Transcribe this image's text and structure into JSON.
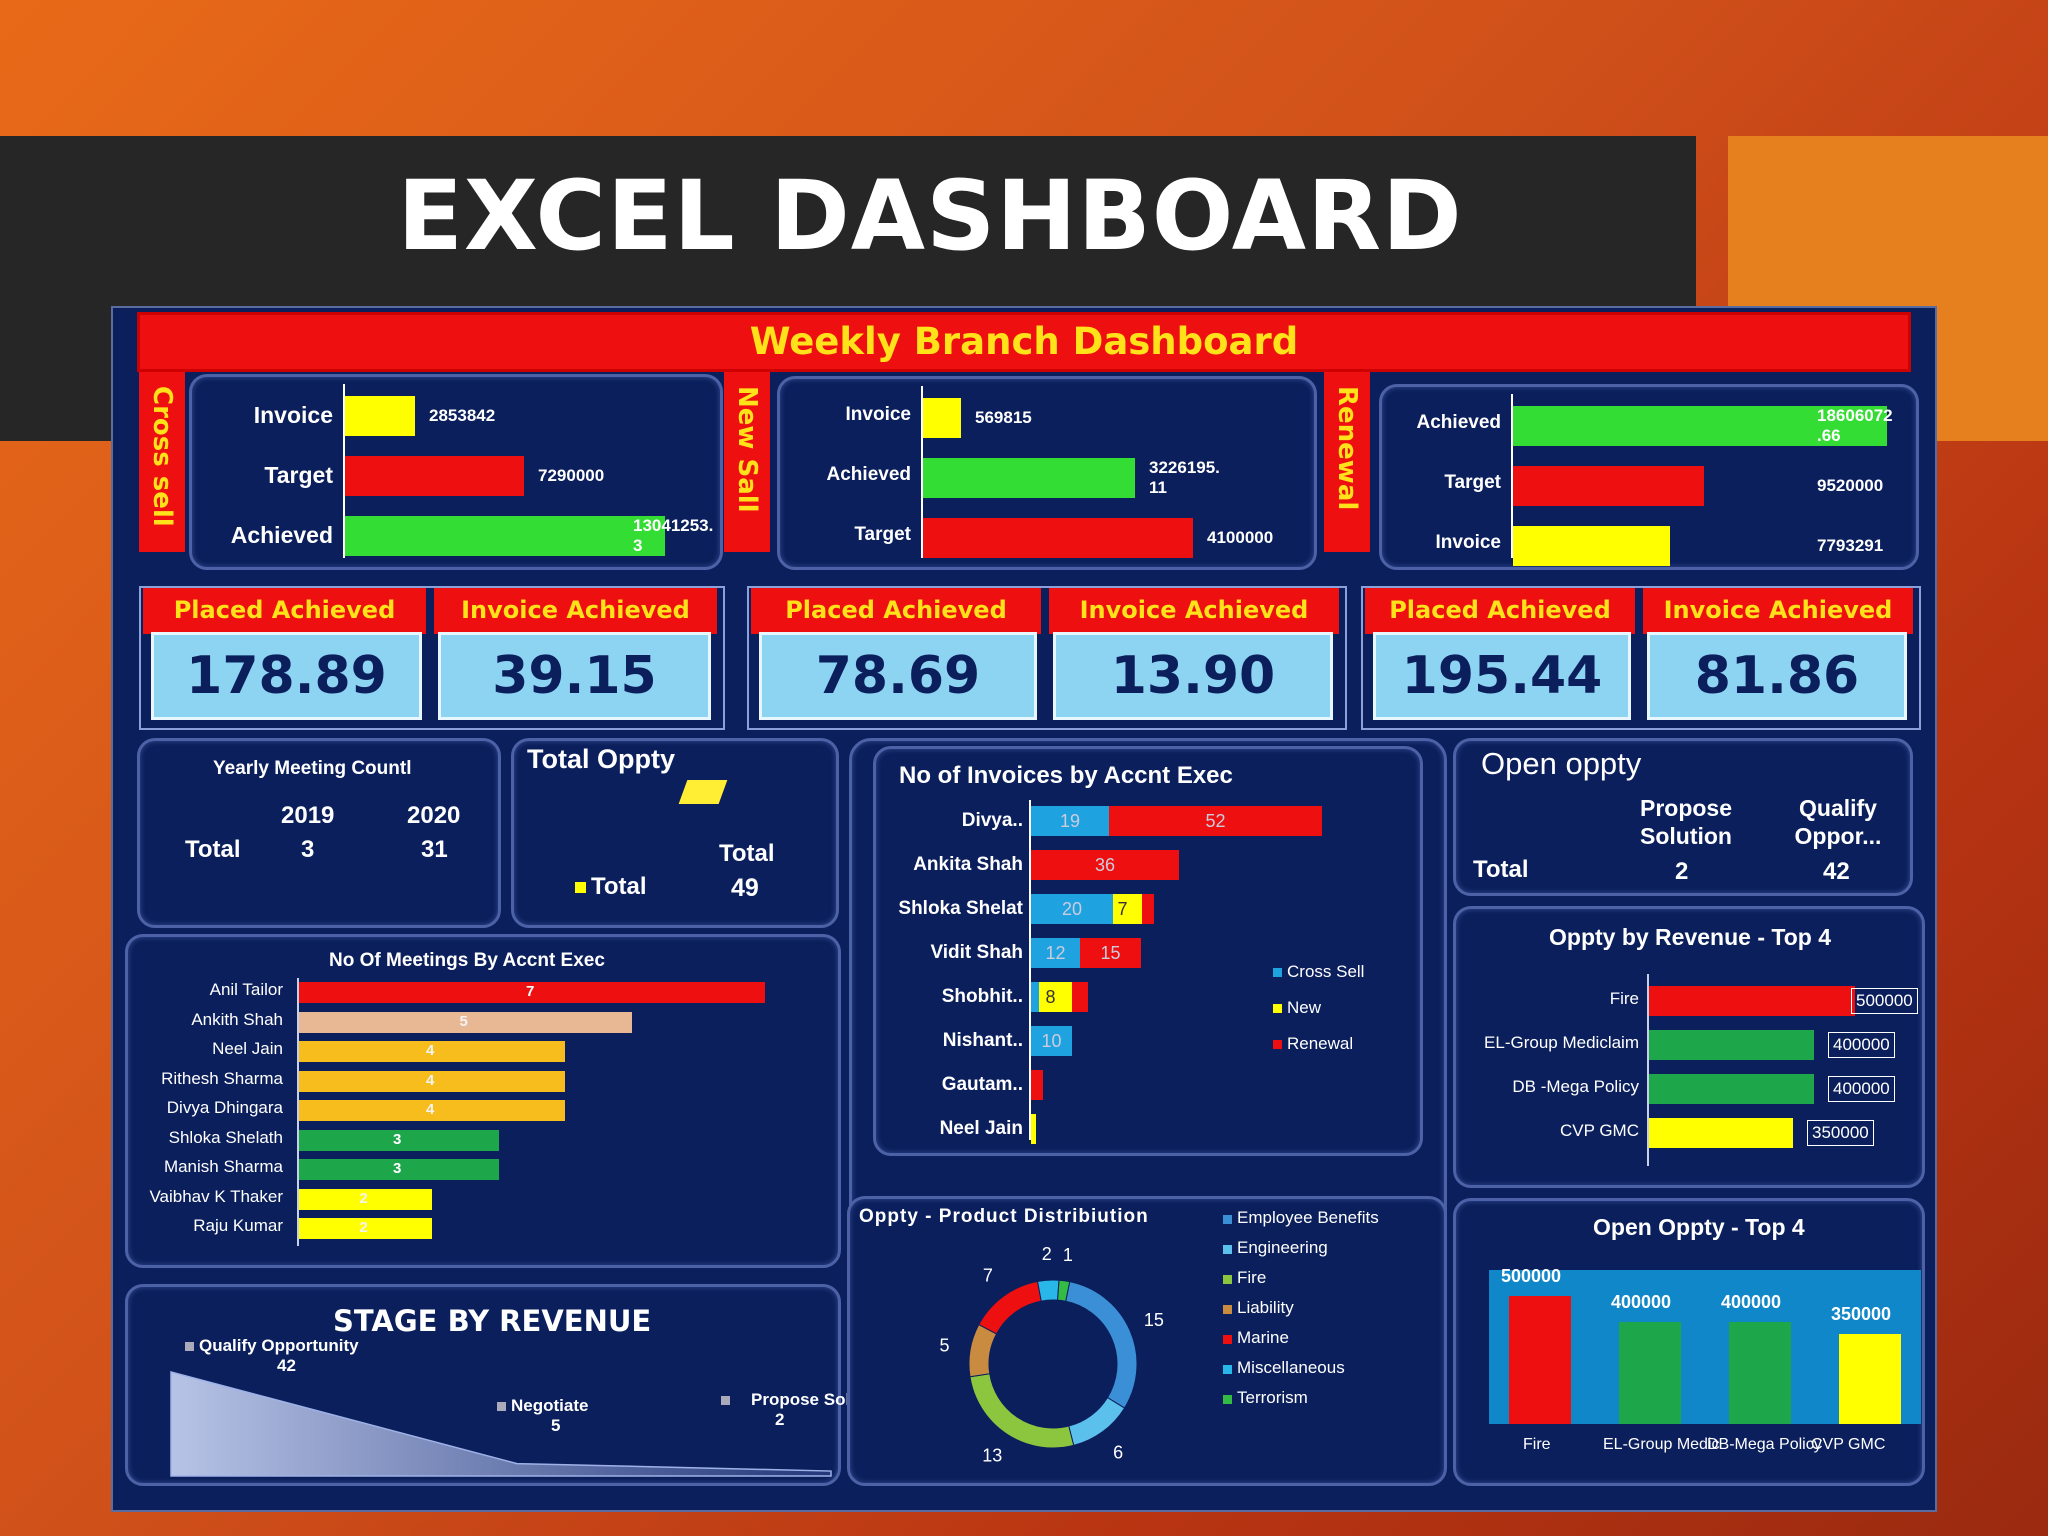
{
  "slide_title": "EXCEL DASHBOARD",
  "dashboard_title": "Weekly Branch Dashboard",
  "colors": {
    "red": "#ee1010",
    "yellow": "#ffff00",
    "green": "#33dd33",
    "gold": "#f7bd1c",
    "tan": "#e8b894",
    "dark_green": "#1ea64a",
    "blue": "#1fa2e0",
    "navy": "#0b1f5c",
    "title_text": "#ffe21a"
  },
  "sections": [
    {
      "label": "Cross sell",
      "bars": [
        {
          "label": "Invoice",
          "value": 2853842,
          "text": "2853842",
          "color": "#ffff00"
        },
        {
          "label": "Target",
          "value": 7290000,
          "text": "7290000",
          "color": "#ee1010"
        },
        {
          "label": "Achieved",
          "value": 13041253.3,
          "text": "13041253.\n3",
          "color": "#33dd33"
        }
      ],
      "placed_label": "Placed Achieved",
      "invoice_label": "Invoice Achieved",
      "placed_value": "178.89",
      "invoice_value": "39.15"
    },
    {
      "label": "New Sall",
      "bars": [
        {
          "label": "Invoice",
          "value": 569815,
          "text": "569815",
          "color": "#ffff00"
        },
        {
          "label": "Achieved",
          "value": 3226195.11,
          "text": "3226195.\n11",
          "color": "#33dd33"
        },
        {
          "label": "Target",
          "value": 4100000,
          "text": "4100000",
          "color": "#ee1010"
        }
      ],
      "placed_label": "Placed Achieved",
      "invoice_label": "Invoice Achieved",
      "placed_value": "78.69",
      "invoice_value": "13.90"
    },
    {
      "label": "Renewal",
      "bars": [
        {
          "label": "Achieved",
          "value": 18606072.66,
          "text": "18606072\n.66",
          "color": "#33dd33"
        },
        {
          "label": "Target",
          "value": 9520000,
          "text": "9520000",
          "color": "#ee1010"
        },
        {
          "label": "Invoice",
          "value": 7793291,
          "text": "7793291",
          "color": "#ffff00"
        }
      ],
      "placed_label": "Placed Achieved",
      "invoice_label": "Invoice Achieved",
      "placed_value": "195.44",
      "invoice_value": "81.86"
    }
  ],
  "yearly_meeting": {
    "title": "Yearly Meeting Countl",
    "year1": "2019",
    "year2": "2020",
    "row_label": "Total",
    "v1": "3",
    "v2": "31"
  },
  "total_oppty": {
    "title": "Total  Oppty",
    "col_label": "Total",
    "legend": "Total",
    "value": "49"
  },
  "open_oppty": {
    "title": "Open oppty",
    "col1": "Propose Solution",
    "col2": "Qualify Oppor...",
    "row_label": "Total",
    "v1": "2",
    "v2": "42"
  },
  "meetings_by_exec": {
    "title": "No Of Meetings By Accnt Exec",
    "rows": [
      {
        "name": "Anil Tailor",
        "value": 7,
        "color": "#ee1010"
      },
      {
        "name": "Ankith Shah",
        "value": 5,
        "color": "#e8b894"
      },
      {
        "name": "Neel Jain",
        "value": 4,
        "color": "#f7bd1c"
      },
      {
        "name": "Rithesh Sharma",
        "value": 4,
        "color": "#f7bd1c"
      },
      {
        "name": "Divya Dhingara",
        "value": 4,
        "color": "#f7bd1c"
      },
      {
        "name": "Shloka Shelath",
        "value": 3,
        "color": "#1ea64a"
      },
      {
        "name": "Manish Sharma",
        "value": 3,
        "color": "#1ea64a"
      },
      {
        "name": "Vaibhav K Thaker",
        "value": 2,
        "color": "#ffff00"
      },
      {
        "name": "Raju Kumar",
        "value": 2,
        "color": "#ffff00"
      }
    ]
  },
  "invoices_by_exec": {
    "title": "No of Invoices by Accnt Exec",
    "legend": [
      {
        "name": "Cross Sell",
        "color": "#1fa2e0"
      },
      {
        "name": "New",
        "color": "#ffff00"
      },
      {
        "name": "Renewal",
        "color": "#ee1010"
      }
    ],
    "rows": [
      {
        "name": "Divya..",
        "cross": 19,
        "new": 0,
        "renewal": 52
      },
      {
        "name": "Ankita Shah",
        "cross": 0,
        "new": 0,
        "renewal": 36
      },
      {
        "name": "Shloka Shelat",
        "cross": 20,
        "new": 7,
        "renewal": 3
      },
      {
        "name": "Vidit Shah",
        "cross": 12,
        "new": 0,
        "renewal": 15
      },
      {
        "name": "Shobhit..",
        "cross": 2,
        "new": 8,
        "renewal": 4
      },
      {
        "name": "Nishant..",
        "cross": 10,
        "new": 0,
        "renewal": 0
      },
      {
        "name": "Gautam..",
        "cross": 0,
        "new": 0,
        "renewal": 3
      },
      {
        "name": "Neel Jain",
        "cross": 0,
        "new": 1,
        "renewal": 0
      }
    ],
    "labels": {
      "Divya..": [
        "19",
        "52"
      ],
      "Ankita Shah": [
        "",
        "36"
      ],
      "Shloka Shelat": [
        "20",
        "7"
      ],
      "Vidit Shah": [
        "12",
        "15"
      ],
      "Shobhit..": [
        "",
        "8"
      ],
      "Nishant..": [
        "10",
        ""
      ]
    }
  },
  "oppty_by_revenue": {
    "title": "Oppty by Revenue - Top 4",
    "rows": [
      {
        "name": "Fire",
        "value": 500000,
        "text": "500000",
        "color": "#ee1010"
      },
      {
        "name": "EL-Group Mediclaim",
        "value": 400000,
        "text": "400000",
        "color": "#1ea64a"
      },
      {
        "name": "DB -Mega Policy",
        "value": 400000,
        "text": "400000",
        "color": "#1ea64a"
      },
      {
        "name": "CVP GMC",
        "value": 350000,
        "text": "350000",
        "color": "#ffff00"
      }
    ]
  },
  "stage_by_revenue": {
    "title": "STAGE BY REVENUE",
    "stages": [
      {
        "name": "Qualify Opportunity",
        "value": 42
      },
      {
        "name": "Negotiate",
        "value": 5
      },
      {
        "name": "Propose Solution",
        "value": 2
      }
    ]
  },
  "product_distribution": {
    "title": "Oppty - Product Distribiution",
    "slices": [
      {
        "name": "Employee Benefits",
        "value": 15,
        "color": "#3a8fd6"
      },
      {
        "name": "Engineering",
        "value": 6,
        "color": "#5bc0eb"
      },
      {
        "name": "Fire",
        "value": 13,
        "color": "#8cc63f"
      },
      {
        "name": "Liability",
        "value": 5,
        "color": "#c98b40"
      },
      {
        "name": "Marine",
        "value": 7,
        "color": "#ee1010"
      },
      {
        "name": "Miscellaneous",
        "value": 2,
        "color": "#29b6e8"
      },
      {
        "name": "Terrorism",
        "value": 1,
        "color": "#33bb44"
      }
    ]
  },
  "open_oppty_top4": {
    "title": "Open Oppty - Top 4",
    "bars": [
      {
        "name": "Fire",
        "value": 500000,
        "text": "500000",
        "color": "#ee1010"
      },
      {
        "name": "EL-Group Mediclaim",
        "value": 400000,
        "text": "400000",
        "color": "#1ea64a"
      },
      {
        "name": "DB-Mega Policy",
        "value": 400000,
        "text": "400000",
        "color": "#1ea64a"
      },
      {
        "name": "CVP GMC",
        "value": 350000,
        "text": "350000",
        "color": "#ffff00"
      }
    ],
    "axis_labels": [
      "Fire",
      "EL-Group Medic",
      "DB-Mega Policy",
      "CVP GMC"
    ]
  }
}
